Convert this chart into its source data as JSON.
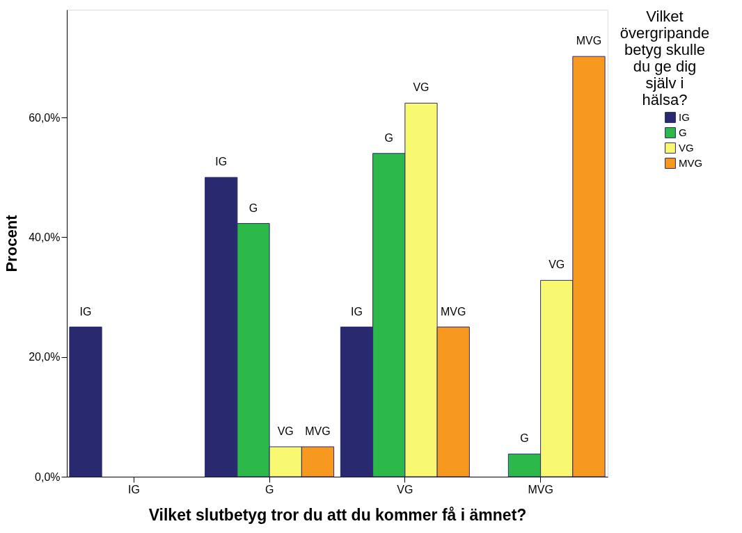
{
  "chart_data": {
    "type": "bar",
    "xlabel": "Vilket slutbetyg tror du att du kommer få i ämnet?",
    "ylabel": "Procent",
    "legend_title": "Vilket övergripande betyg skulle du ge dig själv i hälsa?",
    "legend": "top right",
    "categories": [
      "IG",
      "G",
      "VG",
      "MVG"
    ],
    "ylim": [
      0,
      78
    ],
    "yticks": [
      {
        "value": 0,
        "label": "0,0%"
      },
      {
        "value": 20,
        "label": "20,0%"
      },
      {
        "value": 40,
        "label": "40,0%"
      },
      {
        "value": 60,
        "label": "60,0%"
      }
    ],
    "grid": false,
    "series": [
      {
        "name": "IG",
        "color": "#29296f",
        "values": [
          25,
          50,
          25,
          null
        ],
        "value_labels": [
          "IG",
          "IG",
          "IG",
          null
        ]
      },
      {
        "name": "G",
        "color": "#2db84a",
        "values": [
          null,
          42.3,
          54,
          3.8
        ],
        "value_labels": [
          null,
          "G",
          "G",
          "G"
        ]
      },
      {
        "name": "VG",
        "color": "#f9f871",
        "values": [
          null,
          5,
          62.4,
          32.8
        ],
        "value_labels": [
          null,
          "VG",
          "VG",
          "VG"
        ]
      },
      {
        "name": "MVG",
        "color": "#f7991e",
        "values": [
          null,
          5,
          25,
          70.2
        ],
        "value_labels": [
          null,
          "MVG",
          "MVG",
          "MVG"
        ]
      }
    ]
  }
}
